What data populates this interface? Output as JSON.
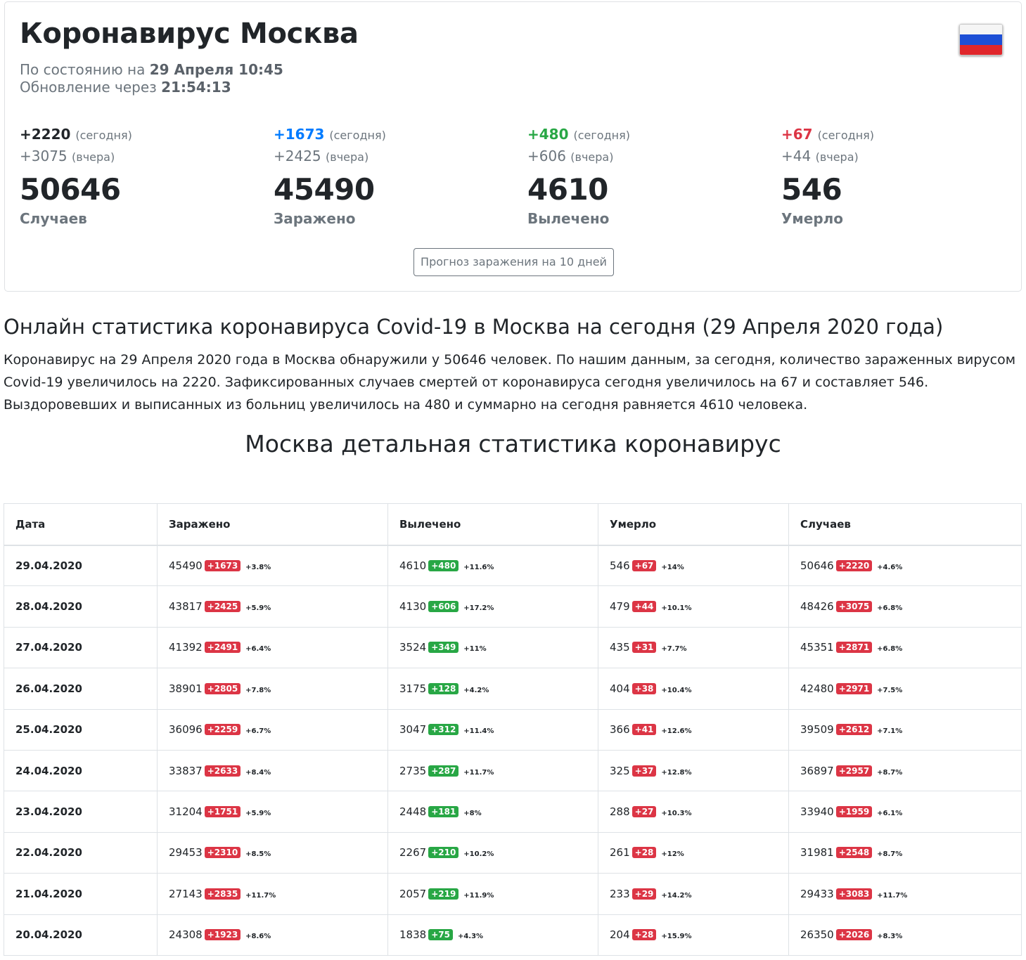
{
  "header": {
    "title": "Коронавирус Москва",
    "status_prefix": "По состоянию на",
    "status_value": "29 Апреля 10:45",
    "update_prefix": "Обновление через",
    "update_value": "21:54:13"
  },
  "colors": {
    "dark": "#212529",
    "blue": "#007bff",
    "green": "#28a745",
    "red": "#dc3545",
    "muted": "#6c757d"
  },
  "stats": [
    {
      "today": "+2220",
      "today_note": "(сегодня)",
      "yesterday": "+3075",
      "yesterday_note": "(вчера)",
      "total": "50646",
      "label": "Случаев"
    },
    {
      "today": "+1673",
      "today_note": "(сегодня)",
      "yesterday": "+2425",
      "yesterday_note": "(вчера)",
      "total": "45490",
      "label": "Заражено"
    },
    {
      "today": "+480",
      "today_note": "(сегодня)",
      "yesterday": "+606",
      "yesterday_note": "(вчера)",
      "total": "4610",
      "label": "Вылечено"
    },
    {
      "today": "+67",
      "today_note": "(сегодня)",
      "yesterday": "+44",
      "yesterday_note": "(вчера)",
      "total": "546",
      "label": "Умерло"
    }
  ],
  "forecast_button": "Прогноз заражения на 10 дней",
  "article": {
    "heading": "Онлайн статистика коронавируса Covid-19 в Москва на сегодня (29 Апреля 2020 года)",
    "text": "Коронавирус на 29 Апреля 2020 года в Москва обнаружили у 50646 человек. По нашим данным, за сегодня, количество зараженных вирусом Covid-19 увеличилось на 2220. Зафиксированных случаев смертей от коронавируса сегодня увеличилось на 67 и составляет 546. Выздоровевших и выписанных из больниц увеличилось на 480 и суммарно на сегодня равняется 4610 человека."
  },
  "table": {
    "title": "Москва детальная статистика коронавирус",
    "headers": [
      "Дата",
      "Заражено",
      "Вылечено",
      "Умерло",
      "Случаев"
    ],
    "rows": [
      {
        "date": "29.04.2020",
        "inf": [
          "45490",
          "+1673",
          "+3.8%"
        ],
        "rec": [
          "4610",
          "+480",
          "+11.6%"
        ],
        "dead": [
          "546",
          "+67",
          "+14%"
        ],
        "cases": [
          "50646",
          "+2220",
          "+4.6%"
        ]
      },
      {
        "date": "28.04.2020",
        "inf": [
          "43817",
          "+2425",
          "+5.9%"
        ],
        "rec": [
          "4130",
          "+606",
          "+17.2%"
        ],
        "dead": [
          "479",
          "+44",
          "+10.1%"
        ],
        "cases": [
          "48426",
          "+3075",
          "+6.8%"
        ]
      },
      {
        "date": "27.04.2020",
        "inf": [
          "41392",
          "+2491",
          "+6.4%"
        ],
        "rec": [
          "3524",
          "+349",
          "+11%"
        ],
        "dead": [
          "435",
          "+31",
          "+7.7%"
        ],
        "cases": [
          "45351",
          "+2871",
          "+6.8%"
        ]
      },
      {
        "date": "26.04.2020",
        "inf": [
          "38901",
          "+2805",
          "+7.8%"
        ],
        "rec": [
          "3175",
          "+128",
          "+4.2%"
        ],
        "dead": [
          "404",
          "+38",
          "+10.4%"
        ],
        "cases": [
          "42480",
          "+2971",
          "+7.5%"
        ]
      },
      {
        "date": "25.04.2020",
        "inf": [
          "36096",
          "+2259",
          "+6.7%"
        ],
        "rec": [
          "3047",
          "+312",
          "+11.4%"
        ],
        "dead": [
          "366",
          "+41",
          "+12.6%"
        ],
        "cases": [
          "39509",
          "+2612",
          "+7.1%"
        ]
      },
      {
        "date": "24.04.2020",
        "inf": [
          "33837",
          "+2633",
          "+8.4%"
        ],
        "rec": [
          "2735",
          "+287",
          "+11.7%"
        ],
        "dead": [
          "325",
          "+37",
          "+12.8%"
        ],
        "cases": [
          "36897",
          "+2957",
          "+8.7%"
        ]
      },
      {
        "date": "23.04.2020",
        "inf": [
          "31204",
          "+1751",
          "+5.9%"
        ],
        "rec": [
          "2448",
          "+181",
          "+8%"
        ],
        "dead": [
          "288",
          "+27",
          "+10.3%"
        ],
        "cases": [
          "33940",
          "+1959",
          "+6.1%"
        ]
      },
      {
        "date": "22.04.2020",
        "inf": [
          "29453",
          "+2310",
          "+8.5%"
        ],
        "rec": [
          "2267",
          "+210",
          "+10.2%"
        ],
        "dead": [
          "261",
          "+28",
          "+12%"
        ],
        "cases": [
          "31981",
          "+2548",
          "+8.7%"
        ]
      },
      {
        "date": "21.04.2020",
        "inf": [
          "27143",
          "+2835",
          "+11.7%"
        ],
        "rec": [
          "2057",
          "+219",
          "+11.9%"
        ],
        "dead": [
          "233",
          "+29",
          "+14.2%"
        ],
        "cases": [
          "29433",
          "+3083",
          "+11.7%"
        ]
      },
      {
        "date": "20.04.2020",
        "inf": [
          "24308",
          "+1923",
          "+8.6%"
        ],
        "rec": [
          "1838",
          "+75",
          "+4.3%"
        ],
        "dead": [
          "204",
          "+28",
          "+15.9%"
        ],
        "cases": [
          "26350",
          "+2026",
          "+8.3%"
        ]
      }
    ]
  }
}
